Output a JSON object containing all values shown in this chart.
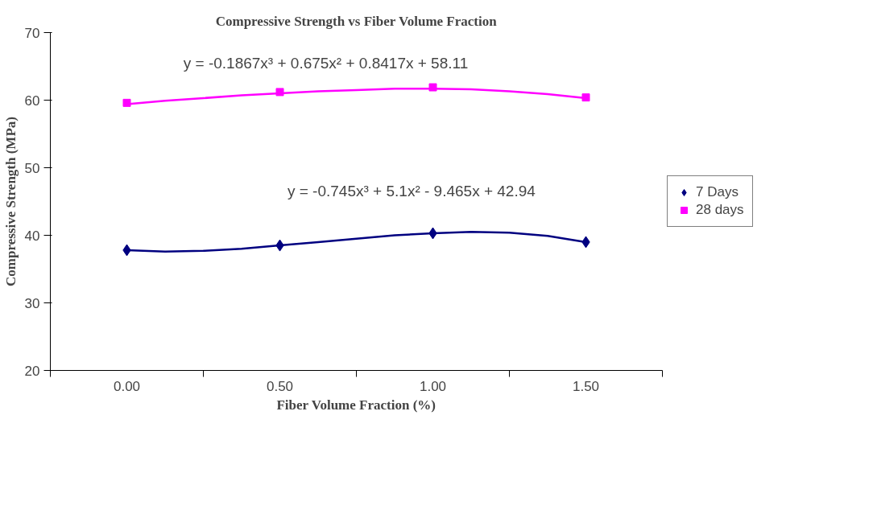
{
  "chart_data": {
    "type": "scatter",
    "title": "Compressive Strength vs Fiber Volume Fraction",
    "xlabel": "Fiber Volume Fraction (%)",
    "ylabel": "Compressive Strength (MPa)",
    "xlim": [
      -0.25,
      1.75
    ],
    "ylim": [
      20,
      70
    ],
    "xticks": [
      {
        "value": -0.25,
        "label": null
      },
      {
        "value": 0,
        "label": "0.00"
      },
      {
        "value": 0.25,
        "label": null
      },
      {
        "value": 0.5,
        "label": "0.50"
      },
      {
        "value": 0.75,
        "label": null
      },
      {
        "value": 1,
        "label": "1.00"
      },
      {
        "value": 1.25,
        "label": null
      },
      {
        "value": 1.5,
        "label": "1.50"
      },
      {
        "value": 1.75,
        "label": null
      }
    ],
    "yticks": [
      20,
      30,
      40,
      50,
      60,
      70
    ],
    "grid": false,
    "legend": "right",
    "series": [
      {
        "name": "7 Days",
        "marker": "diamond",
        "color": "#000080",
        "x": [
          0,
          0.5,
          1,
          1.5
        ],
        "values": [
          37.8,
          38.5,
          40.3,
          39.0
        ]
      },
      {
        "name": "28 days",
        "marker": "square",
        "color": "#ff00ff",
        "x": [
          0,
          0.5,
          1,
          1.5
        ],
        "values": [
          59.6,
          61.2,
          61.9,
          60.4
        ]
      },
      {
        "type": "line",
        "color": "#000080",
        "marker": "none",
        "x": [
          0,
          0.125,
          0.25,
          0.375,
          0.5,
          0.625,
          0.75,
          0.875,
          1,
          1.125,
          1.25,
          1.375,
          1.5
        ],
        "values": [
          37.8,
          37.6,
          37.7,
          38.0,
          38.5,
          39.0,
          39.5,
          40.0,
          40.3,
          40.5,
          40.4,
          39.9,
          39.0
        ]
      },
      {
        "type": "line",
        "color": "#ff00ff",
        "marker": "none",
        "x": [
          0,
          0.125,
          0.25,
          0.375,
          0.5,
          0.625,
          0.75,
          0.875,
          1,
          1.125,
          1.25,
          1.375,
          1.5
        ],
        "values": [
          59.4,
          59.9,
          60.3,
          60.7,
          61.0,
          61.3,
          61.5,
          61.7,
          61.7,
          61.6,
          61.3,
          60.9,
          60.3
        ]
      }
    ],
    "annotations": [
      "y = -0.1867x³ + 0.675x² + 0.8417x + 58.11",
      "y = -0.745x³ + 5.1x² - 9.465x + 42.94"
    ]
  }
}
